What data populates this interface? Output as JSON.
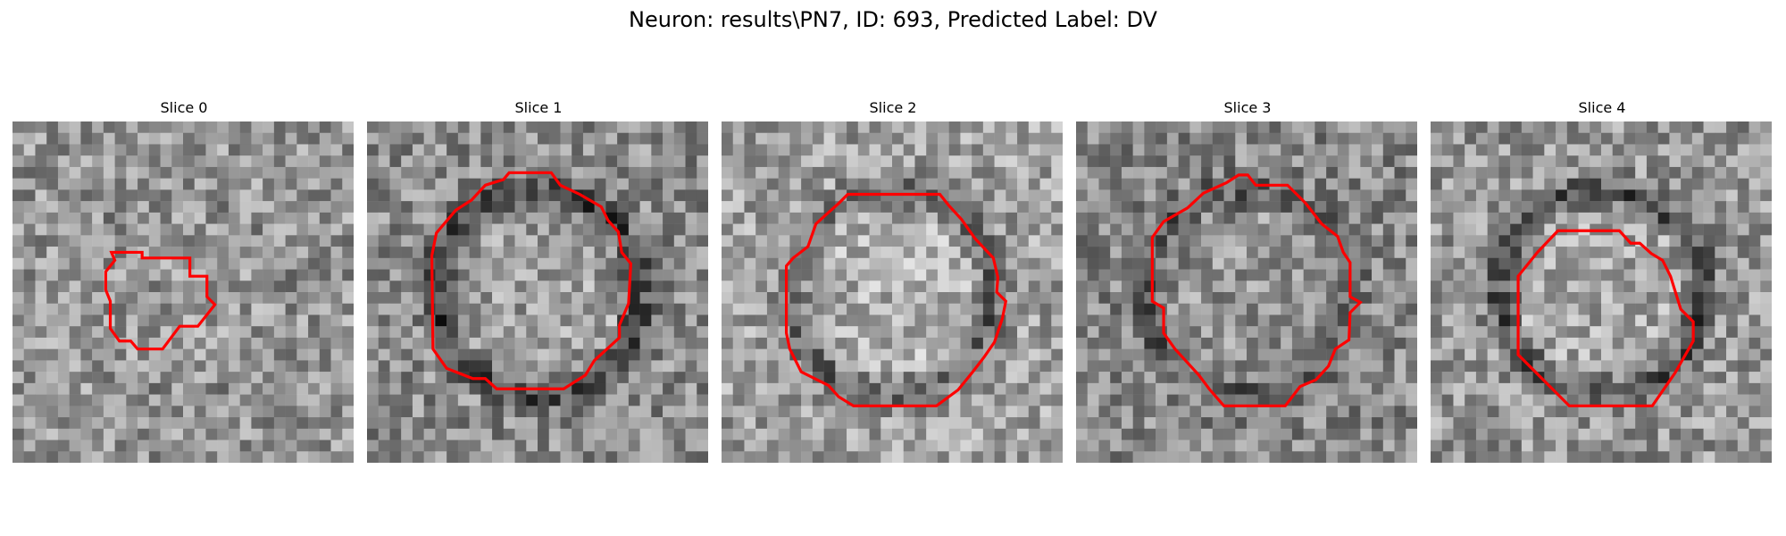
{
  "figure": {
    "title": "Neuron: results\\PN7, ID: 693, Predicted Label: DV",
    "contour_color": "#ff0000"
  },
  "panels": [
    {
      "title": "Slice 0",
      "seed": 11,
      "ring": 0.1,
      "base": 150
    },
    {
      "title": "Slice 1",
      "seed": 23,
      "ring": 0.9,
      "base": 140
    },
    {
      "title": "Slice 2",
      "seed": 37,
      "ring": 0.75,
      "base": 160
    },
    {
      "title": "Slice 3",
      "seed": 51,
      "ring": 0.55,
      "base": 135
    },
    {
      "title": "Slice 4",
      "seed": 67,
      "ring": 0.85,
      "base": 150
    }
  ]
}
